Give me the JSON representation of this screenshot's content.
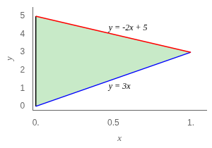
{
  "chart_data": {
    "type": "line",
    "xlabel": "x",
    "ylabel": "y",
    "series": [
      {
        "type": "area",
        "x": [
          0,
          1,
          0
        ],
        "values": [
          0,
          3,
          5
        ],
        "color": "#c8eac8"
      },
      {
        "type": "line",
        "x": [
          0,
          1
        ],
        "values": [
          5,
          3
        ],
        "color": "#ff0000"
      },
      {
        "type": "line",
        "x": [
          0,
          1
        ],
        "values": [
          0,
          3
        ],
        "color": "#0000ff"
      },
      {
        "type": "line",
        "x": [
          0,
          0
        ],
        "values": [
          0,
          5
        ],
        "color": "#000000"
      }
    ],
    "annotations": [
      {
        "text": "y = -2x + 5",
        "x": 0.47,
        "y": 4.35
      },
      {
        "text": "y = 3x",
        "x": 0.47,
        "y": 1.1
      }
    ],
    "xlim": [
      -0.02,
      1.1
    ],
    "ylim": [
      -0.2,
      5.5
    ],
    "xticks": [
      {
        "value": 0,
        "label": "0."
      },
      0.5,
      {
        "value": 1,
        "label": "1."
      }
    ],
    "yticks": [
      0,
      1,
      2,
      3,
      4,
      5
    ],
    "grid": false
  }
}
